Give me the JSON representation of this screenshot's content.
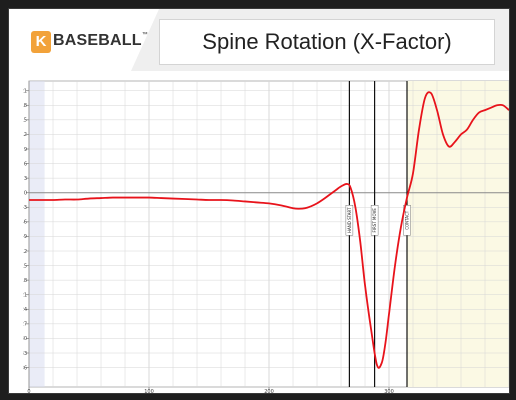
{
  "header": {
    "logo_letter": "K",
    "logo_text": "BASEBALL",
    "logo_tm": "™",
    "title": "Spine Rotation (X-Factor)"
  },
  "chart_data": {
    "type": "line",
    "title": "Spine Rotation (X-Factor)",
    "xlabel": "",
    "ylabel": "",
    "xlim": [
      0,
      400
    ],
    "ylim": [
      -40,
      23
    ],
    "grid": true,
    "x_ticks": [
      0,
      100,
      200,
      300
    ],
    "y_ticks": [
      21,
      18,
      15,
      12,
      9,
      6,
      3,
      0,
      -3,
      -6,
      -9,
      -12,
      -15,
      -18,
      -21,
      -24,
      -27,
      -30,
      -33,
      -36
    ],
    "zero_line": 0,
    "left_band": [
      0,
      13
    ],
    "right_band": [
      315,
      400
    ],
    "colors": {
      "line": "#e8131b",
      "right_band": "#fbf9e4",
      "left_band": "#d9dcf0",
      "grid": "#d6d6d6",
      "zero_line": "#8a8a8a",
      "event_line": "#111111"
    },
    "events": [
      {
        "label": "HAND START",
        "x": 267
      },
      {
        "label": "FIRST MOVE",
        "x": 288
      },
      {
        "label": "CONTACT",
        "x": 315
      }
    ],
    "series": [
      {
        "x": [
          0,
          10,
          20,
          30,
          40,
          50,
          60,
          70,
          80,
          90,
          100,
          110,
          120,
          130,
          140,
          150,
          160,
          170,
          180,
          190,
          200,
          210,
          220,
          225,
          230,
          235,
          240,
          245,
          250,
          255,
          260,
          265,
          268,
          272,
          276,
          280,
          285,
          290,
          294,
          297,
          300,
          305,
          310,
          315,
          320,
          325,
          330,
          335,
          340,
          345,
          350,
          355,
          360,
          365,
          370,
          375,
          380,
          385,
          390,
          395,
          400
        ],
        "y": [
          -1.5,
          -1.5,
          -1.5,
          -1.4,
          -1.4,
          -1.2,
          -1.1,
          -1.0,
          -1.0,
          -1.0,
          -1.0,
          -1.1,
          -1.2,
          -1.3,
          -1.4,
          -1.5,
          -1.5,
          -1.6,
          -1.8,
          -2.0,
          -2.2,
          -2.6,
          -3.2,
          -3.3,
          -3.2,
          -2.8,
          -2.2,
          -1.4,
          -0.5,
          0.4,
          1.3,
          1.8,
          1.0,
          -3.0,
          -10.0,
          -19.0,
          -28.0,
          -35.5,
          -35.0,
          -31.0,
          -25.0,
          -15.0,
          -7.0,
          -1.0,
          4.0,
          13.0,
          19.5,
          20.5,
          17.0,
          12.0,
          9.5,
          10.5,
          12.0,
          13.0,
          15.0,
          16.5,
          17.0,
          17.5,
          18.0,
          18.0,
          17.0
        ]
      }
    ]
  }
}
